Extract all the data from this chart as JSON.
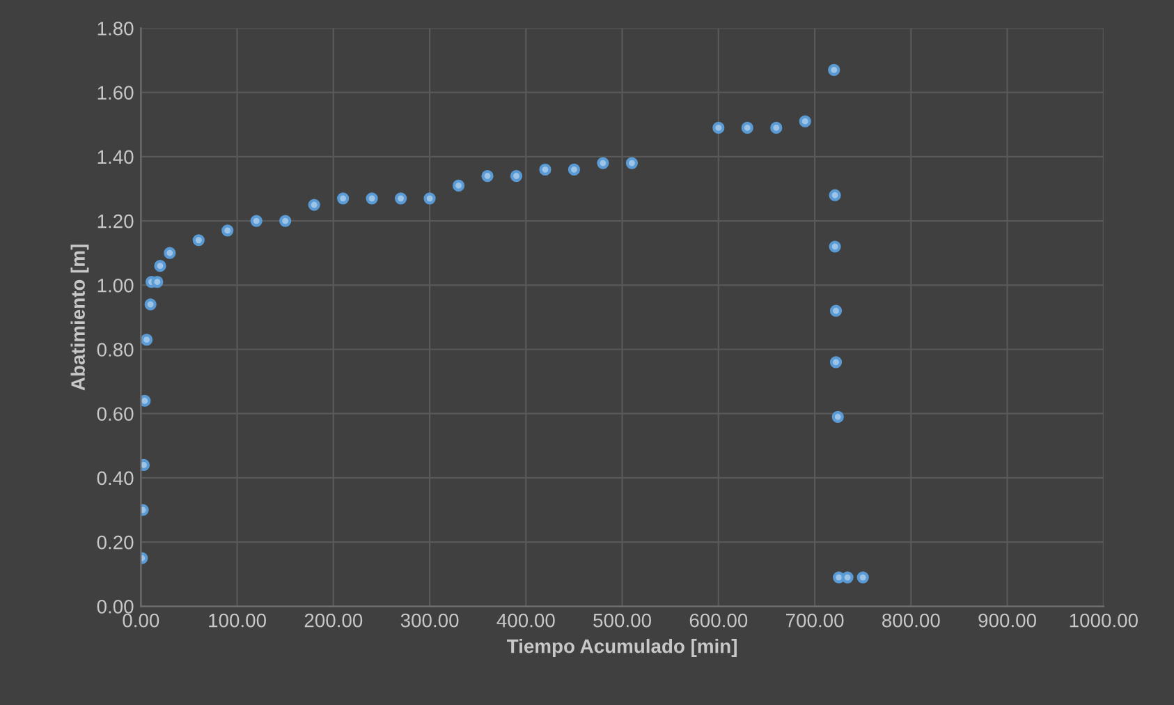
{
  "chart_data": {
    "type": "scatter",
    "xlabel": "Tiempo Acumulado [min]",
    "ylabel": "Abatimiento [m]",
    "x": [
      1,
      2,
      3,
      4,
      6,
      10,
      11,
      17,
      20,
      30,
      60,
      90,
      120,
      150,
      180,
      210,
      240,
      270,
      300,
      330,
      360,
      390,
      420,
      450,
      480,
      510,
      600,
      630,
      660,
      690,
      720,
      721,
      721,
      722,
      722,
      724,
      725,
      734,
      750
    ],
    "series": [
      {
        "color": "#9dc3e6",
        "values": [
          0.15,
          0.3,
          0.44,
          0.64,
          0.83,
          0.94,
          1.01,
          1.01,
          1.06,
          1.1,
          1.14,
          1.17,
          1.2,
          1.2,
          1.25,
          1.27,
          1.27,
          1.27,
          1.27,
          1.31,
          1.34,
          1.34,
          1.36,
          1.36,
          1.38,
          1.38,
          1.49,
          1.49,
          1.49,
          1.51,
          1.67,
          1.28,
          1.12,
          0.92,
          0.76,
          0.59,
          0.09,
          0.09,
          0.09
        ]
      }
    ],
    "xlim": [
      0,
      1000
    ],
    "ylim": [
      0,
      1.8
    ],
    "xticks": [
      {
        "value": 0,
        "label": "0.00"
      },
      {
        "value": 100,
        "label": "100.00"
      },
      {
        "value": 200,
        "label": "200.00"
      },
      {
        "value": 300,
        "label": "300.00"
      },
      {
        "value": 400,
        "label": "400.00"
      },
      {
        "value": 500,
        "label": "500.00"
      },
      {
        "value": 600,
        "label": "600.00"
      },
      {
        "value": 700,
        "label": "700.00"
      },
      {
        "value": 800,
        "label": "800.00"
      },
      {
        "value": 900,
        "label": "900.00"
      },
      {
        "value": 1000,
        "label": "1000.00"
      }
    ],
    "yticks": [
      {
        "value": 0,
        "label": "0.00"
      },
      {
        "value": 0.2,
        "label": "0.20"
      },
      {
        "value": 0.4,
        "label": "0.40"
      },
      {
        "value": 0.6,
        "label": "0.60"
      },
      {
        "value": 0.8,
        "label": "0.80"
      },
      {
        "value": 1.0,
        "label": "1.00"
      },
      {
        "value": 1.2,
        "label": "1.20"
      },
      {
        "value": 1.4,
        "label": "1.40"
      },
      {
        "value": 1.6,
        "label": "1.60"
      },
      {
        "value": 1.8,
        "label": "1.80"
      }
    ],
    "grid": true,
    "marker": "circle"
  }
}
